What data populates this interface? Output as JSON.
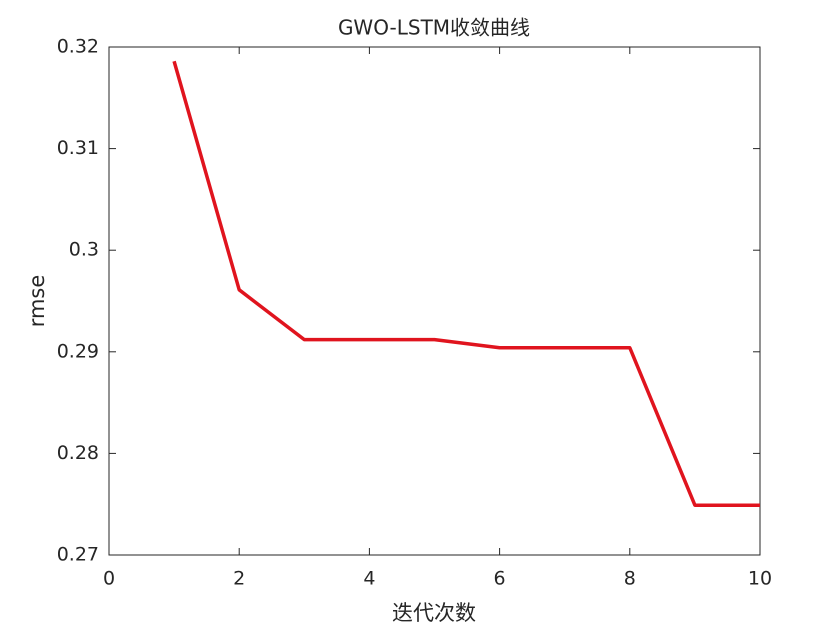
{
  "chart_data": {
    "type": "line",
    "title": "GWO-LSTM收敛曲线",
    "x_label": "迭代次数",
    "y_label": "rmse",
    "x": [
      1,
      2,
      3,
      4,
      5,
      6,
      7,
      8,
      9,
      10
    ],
    "series": [
      {
        "name": "rmse",
        "color": "#e0141e",
        "values": [
          0.3186,
          0.2961,
          0.2912,
          0.2912,
          0.2912,
          0.2904,
          0.2904,
          0.2904,
          0.2749,
          0.2749
        ]
      }
    ],
    "xlim": [
      0,
      10
    ],
    "xticks": [
      0,
      2,
      4,
      6,
      8,
      10
    ],
    "ylim": [
      0.27,
      0.32
    ],
    "yticks": [
      0.27,
      0.28,
      0.29,
      0.3,
      0.31,
      0.32
    ],
    "grid": false
  }
}
